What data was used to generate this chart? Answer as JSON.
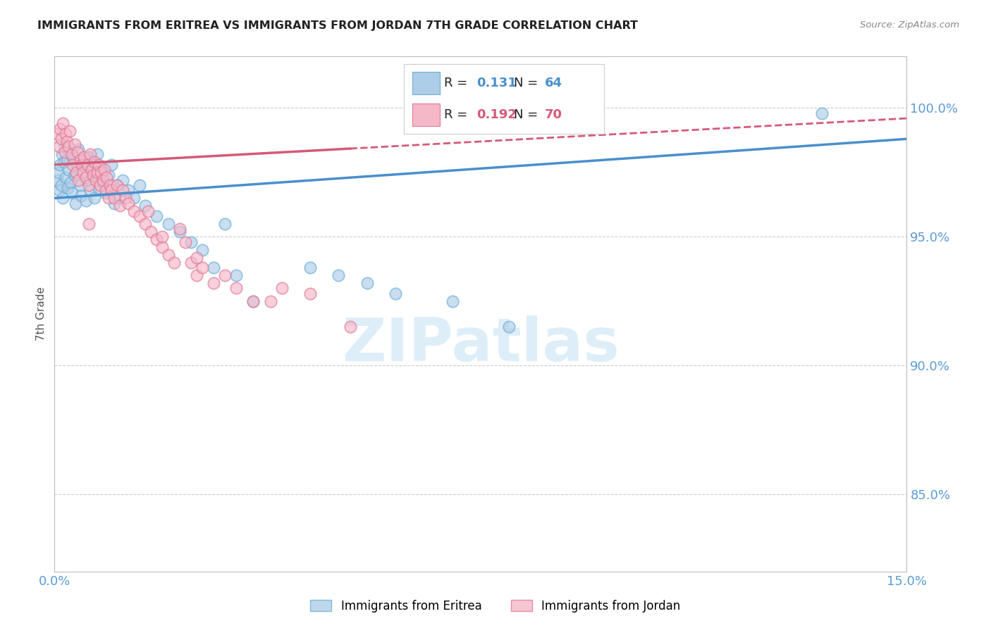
{
  "title": "IMMIGRANTS FROM ERITREA VS IMMIGRANTS FROM JORDAN 7TH GRADE CORRELATION CHART",
  "source": "Source: ZipAtlas.com",
  "ylabel": "7th Grade",
  "xlim": [
    0.0,
    15.0
  ],
  "ylim": [
    82.0,
    102.0
  ],
  "yticks": [
    85.0,
    90.0,
    95.0,
    100.0
  ],
  "ytick_labels": [
    "85.0%",
    "90.0%",
    "95.0%",
    "100.0%"
  ],
  "xtick_labels": [
    "0.0%",
    "15.0%"
  ],
  "R_eritrea": 0.131,
  "N_eritrea": 64,
  "R_jordan": 0.192,
  "N_jordan": 70,
  "color_eritrea_fill": "#aecde8",
  "color_eritrea_edge": "#6baed6",
  "color_eritrea_line": "#4a8fcc",
  "color_jordan_fill": "#f5b8c8",
  "color_jordan_edge": "#e07898",
  "color_jordan_line": "#d45a78",
  "legend_label_eritrea": "Immigrants from Eritrea",
  "legend_label_jordan": "Immigrants from Jordan",
  "eritrea_x": [
    0.05,
    0.07,
    0.08,
    0.1,
    0.12,
    0.13,
    0.15,
    0.17,
    0.18,
    0.2,
    0.22,
    0.23,
    0.25,
    0.27,
    0.28,
    0.3,
    0.32,
    0.35,
    0.37,
    0.4,
    0.42,
    0.45,
    0.47,
    0.5,
    0.52,
    0.55,
    0.58,
    0.6,
    0.63,
    0.65,
    0.68,
    0.7,
    0.73,
    0.75,
    0.78,
    0.8,
    0.85,
    0.9,
    0.95,
    1.0,
    1.05,
    1.1,
    1.15,
    1.2,
    1.3,
    1.4,
    1.5,
    1.6,
    1.8,
    2.0,
    2.2,
    2.4,
    2.6,
    2.8,
    3.0,
    3.2,
    3.5,
    4.5,
    5.0,
    5.5,
    6.0,
    7.0,
    8.0,
    13.5
  ],
  "eritrea_y": [
    97.2,
    97.5,
    96.8,
    97.8,
    97.0,
    98.2,
    96.5,
    97.9,
    98.5,
    97.3,
    98.0,
    96.9,
    97.6,
    98.3,
    97.1,
    96.7,
    98.1,
    97.4,
    96.3,
    97.7,
    98.4,
    97.0,
    96.6,
    97.8,
    98.0,
    96.4,
    97.2,
    98.1,
    96.8,
    97.5,
    97.9,
    96.5,
    97.3,
    98.2,
    96.9,
    97.6,
    97.1,
    96.7,
    97.4,
    97.8,
    96.3,
    97.0,
    96.5,
    97.2,
    96.8,
    96.5,
    97.0,
    96.2,
    95.8,
    95.5,
    95.2,
    94.8,
    94.5,
    93.8,
    95.5,
    93.5,
    92.5,
    93.8,
    93.5,
    93.2,
    92.8,
    92.5,
    91.5,
    99.8
  ],
  "jordan_x": [
    0.05,
    0.08,
    0.1,
    0.12,
    0.15,
    0.18,
    0.2,
    0.22,
    0.25,
    0.27,
    0.3,
    0.32,
    0.35,
    0.38,
    0.4,
    0.42,
    0.45,
    0.48,
    0.5,
    0.52,
    0.55,
    0.58,
    0.6,
    0.63,
    0.65,
    0.68,
    0.7,
    0.73,
    0.75,
    0.78,
    0.8,
    0.82,
    0.85,
    0.88,
    0.9,
    0.92,
    0.95,
    0.98,
    1.0,
    1.05,
    1.1,
    1.15,
    1.2,
    1.25,
    1.3,
    1.4,
    1.5,
    1.6,
    1.7,
    1.8,
    1.9,
    2.0,
    2.1,
    2.2,
    2.3,
    2.4,
    2.5,
    2.6,
    2.8,
    3.0,
    3.2,
    3.5,
    4.0,
    4.5,
    1.65,
    0.6,
    1.9,
    2.5,
    3.8,
    5.2
  ],
  "jordan_y": [
    99.0,
    98.5,
    99.2,
    98.8,
    99.4,
    98.3,
    99.0,
    98.7,
    98.5,
    99.1,
    98.2,
    97.8,
    98.6,
    97.5,
    98.3,
    97.2,
    98.0,
    97.8,
    97.5,
    98.1,
    97.3,
    97.8,
    97.0,
    98.2,
    97.6,
    97.4,
    97.9,
    97.2,
    97.5,
    97.8,
    97.0,
    97.5,
    97.2,
    97.6,
    96.8,
    97.3,
    96.5,
    97.0,
    96.8,
    96.5,
    97.0,
    96.2,
    96.8,
    96.5,
    96.3,
    96.0,
    95.8,
    95.5,
    95.2,
    94.9,
    94.6,
    94.3,
    94.0,
    95.3,
    94.8,
    94.0,
    93.5,
    93.8,
    93.2,
    93.5,
    93.0,
    92.5,
    93.0,
    92.8,
    96.0,
    95.5,
    95.0,
    94.2,
    92.5,
    91.5
  ],
  "trendline_eritrea_x0": 0.0,
  "trendline_eritrea_y0": 96.5,
  "trendline_eritrea_x1": 15.0,
  "trendline_eritrea_y1": 98.8,
  "trendline_jordan_x0": 0.0,
  "trendline_jordan_y0": 97.8,
  "trendline_jordan_x1": 15.0,
  "trendline_jordan_y1": 99.6,
  "jordan_dashed_start_x": 5.2,
  "watermark_text": "ZIPatlas",
  "watermark_color": "#c8e4f5"
}
